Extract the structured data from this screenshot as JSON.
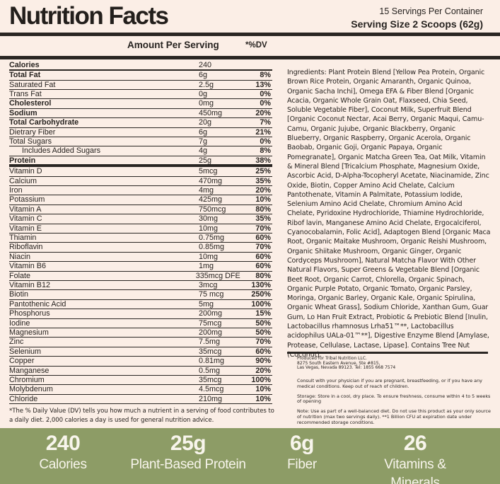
{
  "colors": {
    "background": "#fbeee6",
    "ink": "#272320",
    "bar_green": "#8d9c66",
    "bar_text": "#f8f5ec"
  },
  "header": {
    "title": "Nutrition Facts",
    "servings_per_container": "15 Servings Per Container",
    "serving_size": "Serving Size 2 Scoops (62g)"
  },
  "table": {
    "amount_header": "Amount Per Serving",
    "dv_header": "*%DV",
    "rows": [
      {
        "label": "Calories",
        "amount": "240",
        "dv": "",
        "bold": true,
        "heavy": true
      },
      {
        "label": "Total Fat",
        "amount": "6g",
        "dv": "8%",
        "bold": true
      },
      {
        "label": "Saturated Fat",
        "amount": "2.5g",
        "dv": "13%"
      },
      {
        "label": "Trans Fat",
        "amount": "0g",
        "dv": "0%"
      },
      {
        "label": "Cholesterol",
        "amount": "0mg",
        "dv": "0%",
        "bold": true
      },
      {
        "label": "Sodium",
        "amount": "450mg",
        "dv": "20%",
        "bold": true
      },
      {
        "label": "Total Carbohydrate",
        "amount": "20g",
        "dv": "7%",
        "bold": true
      },
      {
        "label": "Dietrary Fiber",
        "amount": "6g",
        "dv": "21%"
      },
      {
        "label": "Total Sugars",
        "amount": "7g",
        "dv": "0%"
      },
      {
        "label": "Includes Added Sugars",
        "amount": "4g",
        "dv": "8%",
        "indent": true
      },
      {
        "label": "Protein",
        "amount": "25g",
        "dv": "38%",
        "bold": true,
        "thick": true
      },
      {
        "label": "Vitamin D",
        "amount": "5mcg",
        "dv": "25%"
      },
      {
        "label": "Calcium",
        "amount": "470mg",
        "dv": "35%"
      },
      {
        "label": "Iron",
        "amount": "4mg",
        "dv": "20%"
      },
      {
        "label": "Potassium",
        "amount": "425mg",
        "dv": "10%"
      },
      {
        "label": "Vitamin A",
        "amount": "750mcg",
        "dv": "80%"
      },
      {
        "label": "Vitamin C",
        "amount": "30mg",
        "dv": "35%"
      },
      {
        "label": "Vitamin E",
        "amount": "10mg",
        "dv": "70%"
      },
      {
        "label": "Thiamin",
        "amount": "0.75mg",
        "dv": "60%"
      },
      {
        "label": "Riboflavin",
        "amount": "0.85mg",
        "dv": "70%"
      },
      {
        "label": "Niacin",
        "amount": "10mg",
        "dv": "60%"
      },
      {
        "label": "Vitamin B6",
        "amount": "1mg",
        "dv": "60%"
      },
      {
        "label": "Folate",
        "amount": "335mcg DFE",
        "dv": "80%"
      },
      {
        "label": "Vitamin B12",
        "amount": "3mcg",
        "dv": "130%"
      },
      {
        "label": "Biotin",
        "amount": "75 mcg",
        "dv": "250%"
      },
      {
        "label": "Pantothenic Acid",
        "amount": "5mg",
        "dv": "100%"
      },
      {
        "label": "Phosphorus",
        "amount": "200mg",
        "dv": "15%"
      },
      {
        "label": "Iodine",
        "amount": "75mcg",
        "dv": "50%"
      },
      {
        "label": "Magnesium",
        "amount": "200mg",
        "dv": "50%"
      },
      {
        "label": "Zinc",
        "amount": "7.5mg",
        "dv": "70%"
      },
      {
        "label": "Selenium",
        "amount": "35mcg",
        "dv": "60%"
      },
      {
        "label": "Copper",
        "amount": "0.81mg",
        "dv": "90%"
      },
      {
        "label": "Manganese",
        "amount": "0.5mg",
        "dv": "20%"
      },
      {
        "label": "Chromium",
        "amount": "35mcg",
        "dv": "100%"
      },
      {
        "label": "Molybdenum",
        "amount": "4.5mcg",
        "dv": "10%"
      },
      {
        "label": "Chloride",
        "amount": "210mg",
        "dv": "10%"
      }
    ],
    "footnote": "*The % Daily Value (DV) tells you how much a nutrient in a serving of food contributes to a daily diet. 2,000 calories a day is used for general nutrition advice."
  },
  "ingredients_text": "Ingredients: Plant Protein Blend [Yellow Pea Protein, Organic Brown Rice Protein, Organic Amaranth, Organic Quinoa, Organic Sacha Inchi], Omega EFA & Fiber Blend [Organic Acacia, Organic Whole Grain Oat, Flaxseed, Chia Seed, Soluble Vegetable Fiber], Coconut Milk, Superfruit Blend [Organic Coconut Nectar, Acai Berry, Organic Maqui, Camu-Camu, Organic Jujube, Organic Blackberry, Organic Blueberry, Organic Raspberry, Organic Acerola, Organic Baobab, Organic Goji, Organic Papaya, Organic Pomegranate], Organic Matcha Green Tea, Oat Milk, Vitamin & Mineral Blend [Tricalcium Phosphate, Magnesium Oxide, Ascorbic Acid, D-Alpha-Tocopheryl Acetate, Niacinamide, Zinc Oxide, Biotin, Copper Amino Acid Chelate, Calcium Pantothenate, Vitamin A Palmitate, Potassium Iodide, Selenium Amino Acid Chelate, Chromium Amino Acid Chelate, Pyridoxine Hydrochloride, Thiamine Hydrochloride, Ribof lavin, Manganese Amino Acid Chelate, Ergocalciferol, Cyanocobalamin, Folic Acid], Adaptogen Blend [Organic Maca Root, Organic Maitake Mushroom, Organic Reishi Mushroom, Organic Shiitake Mushroom, Organic Ginger, Organic Cordyceps Mushroom], Natural Matcha Flavor With Other Natural Flavors, Super Greens & Vegetable Blend [Organic Beet Root, Organic Carrot, Chlorella, Organic Spinach, Organic Purple Potato, Organic Tomato, Organic Parsley, Moringa, Organic Barley, Organic Kale, Organic Spirulina, Organic Wheat Grass], Sodium Chloride, Xanthan Gum, Guar Gum, Lo Han Fruit Extract, Probiotic & Prebiotic Blend [Inulin, Lactobacillus rhamnosus Lrha51™**, Lactobacillus acidophilus UALa-01™**], Digestive Enzyme Blend [Amylase, Protease, Cellulase, Lactase, Lipase]. Contains Tree Nut (Coconut).",
  "producer_lines": [
    "Produced for Tribal Nutrition LLC.",
    "8275 South Eastern Avenue, Ste #815,",
    "Las Vegas, Nevada 89123. Tel: 1855 668 7574"
  ],
  "notes": [
    "Consult with your physician if you are pregnant, breastfeeding, or if you have any medical conditions. Keep out of reach of children.",
    "Storage: Store in a cool, dry place. To ensure freshness, consume within 4 to 5 weeks of opening",
    "Note: Use as part of a well-balanced diet. Do not use this product as your only source of nutrition (max two servings daily). **1 Billion CFU at expiration date under recommended storage conditions."
  ],
  "summary": [
    {
      "value": "240",
      "label": "Calories"
    },
    {
      "value": "25g",
      "label": "Plant-Based Protein"
    },
    {
      "value": "6g",
      "label": "Fiber"
    },
    {
      "value": "26",
      "label": "Vitamins & Minerals"
    }
  ]
}
